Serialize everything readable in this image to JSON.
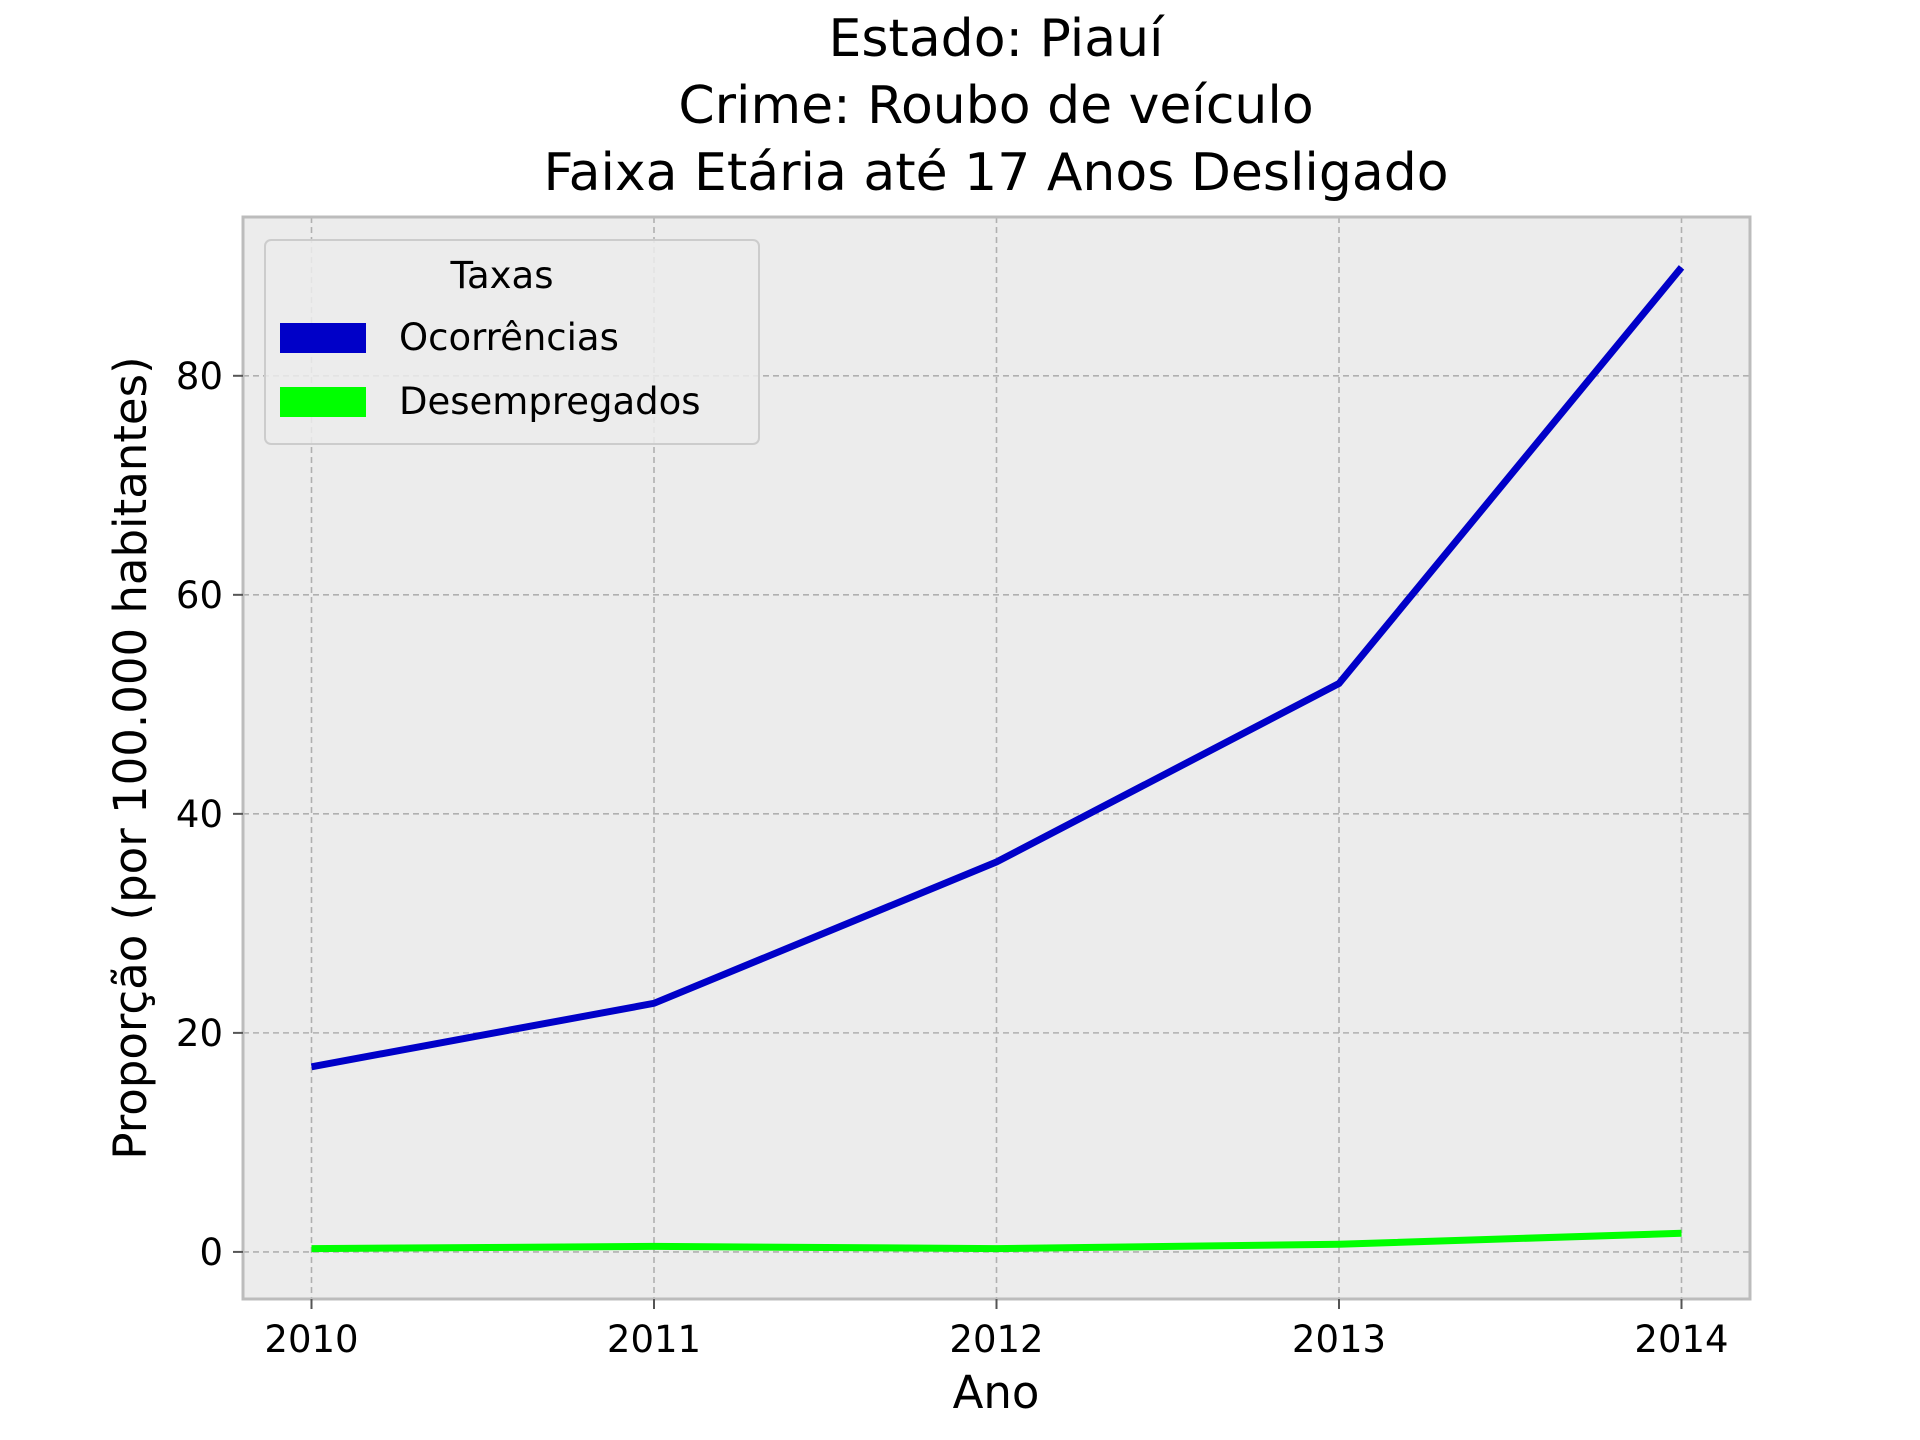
{
  "chart_data": {
    "type": "line",
    "title_lines": [
      "Estado: Piauí",
      "Crime: Roubo de veículo",
      "Faixa Etária até 17 Anos   Desligado"
    ],
    "xlabel": "Ano",
    "ylabel": "Proporção (por 100.000 habitantes)",
    "x": [
      2010,
      2011,
      2012,
      2013,
      2014
    ],
    "x_tick_labels": [
      "2010",
      "2011",
      "2012",
      "2013",
      "2014"
    ],
    "y_ticks": [
      0,
      20,
      40,
      60,
      80
    ],
    "y_tick_labels": [
      "0",
      "20",
      "40",
      "60",
      "80"
    ],
    "xlim": [
      2009.8,
      2014.2
    ],
    "ylim": [
      -4.3,
      94.5
    ],
    "grid": true,
    "legend": {
      "title": "Taxas",
      "placement": "top-left"
    },
    "series": [
      {
        "name": "Ocorrências",
        "color": "#0000c8",
        "values": [
          16.9,
          22.7,
          35.6,
          51.9,
          89.9
        ]
      },
      {
        "name": "Desempregados",
        "color": "#00ff00",
        "values": [
          0.3,
          0.5,
          0.3,
          0.7,
          1.7
        ]
      }
    ],
    "colors": {
      "plot_background": "#ececec",
      "grid": "#b0b0b0",
      "frame": "#bcbcbc"
    }
  }
}
